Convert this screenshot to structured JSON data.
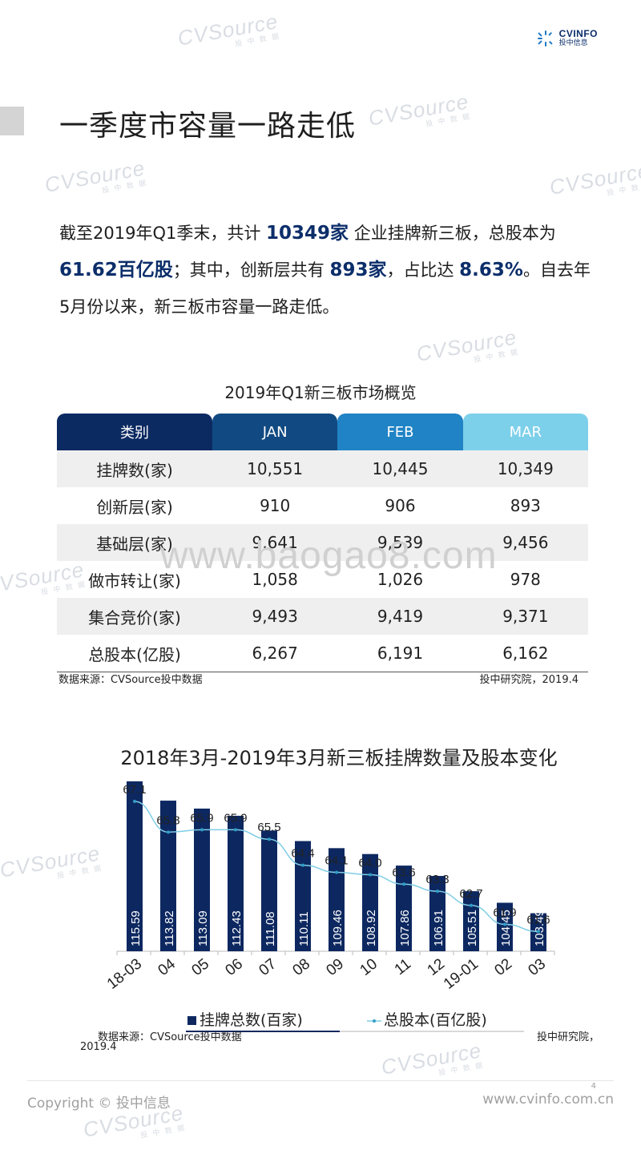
{
  "watermark": {
    "brand": "CVSource",
    "sub": "投 中 数 据"
  },
  "watermark_url": "www.baogao8.com",
  "logo": {
    "name": "CVINFO",
    "sub": "投中信息"
  },
  "title": "一季度市容量一路走低",
  "intro": {
    "p1": "截至2019年Q1季末，共计",
    "listed": "10349家",
    "p2": "企业挂牌新三板，总股本为",
    "equity": "61.62百亿股",
    "p3": "；其中，创新层共有",
    "innov": "893家",
    "p4": "，占比达",
    "ratio": "8.63%",
    "p5": "。自去年5月份以来，新三板市容量一路走低。"
  },
  "table": {
    "title": "2019年Q1新三板市场概览",
    "headers": [
      "类别",
      "JAN",
      "FEB",
      "MAR"
    ],
    "rows": [
      [
        "挂牌数(家)",
        "10,551",
        "10,445",
        "10,349"
      ],
      [
        "创新层(家)",
        "910",
        "906",
        "893"
      ],
      [
        "基础层(家)",
        "9,641",
        "9,539",
        "9,456"
      ],
      [
        "做市转让(家)",
        "1,058",
        "1,026",
        "978"
      ],
      [
        "集合竞价(家)",
        "9,493",
        "9,419",
        "9,371"
      ],
      [
        "总股本(亿股)",
        "6,267",
        "6,191",
        "6,162"
      ]
    ],
    "source": "数据来源：CVSource投中数据",
    "date": "投中研究院，2019.4"
  },
  "chart_data": {
    "type": "bar",
    "title": "2018年3月-2019年3月新三板挂牌数量及股本变化",
    "categories": [
      "18-03",
      "04",
      "05",
      "06",
      "07",
      "08",
      "09",
      "10",
      "11",
      "12",
      "19-01",
      "02",
      "03"
    ],
    "series": [
      {
        "name": "挂牌总数(百家)",
        "type": "bar",
        "color": "#0d2860",
        "values": [
          115.59,
          113.82,
          113.09,
          112.43,
          111.08,
          110.11,
          109.46,
          108.92,
          107.86,
          106.91,
          105.51,
          104.45,
          103.49
        ]
      },
      {
        "name": "总股本(百亿股)",
        "type": "line",
        "color": "#7fcde6",
        "values": [
          67.1,
          65.8,
          65.9,
          65.9,
          65.5,
          64.4,
          64.1,
          64.0,
          63.6,
          63.3,
          62.7,
          61.9,
          61.6
        ]
      }
    ],
    "bar_labels": [
      "115.59",
      "113.82",
      "113.09",
      "112.43",
      "111.08",
      "110.11",
      "109.46",
      "108.92",
      "107.86",
      "106.91",
      "105.51",
      "104.45",
      "103.49"
    ],
    "line_labels": [
      "67.1",
      "65.8",
      "65.9",
      "65.9",
      "65.5",
      "64.4",
      "64.1",
      "64.0",
      "63.6",
      "63.3",
      "62.7",
      "61.9",
      "61.6"
    ],
    "legend_position": "bottom",
    "grid": false
  },
  "chart_source": "数据来源：CVSource投中数据",
  "chart_date": "投中研究院，",
  "chart_year": "2019.4",
  "footer": {
    "copyright": "Copyright © 投中信息",
    "site": "www.cvinfo.com.cn",
    "page": "4"
  }
}
